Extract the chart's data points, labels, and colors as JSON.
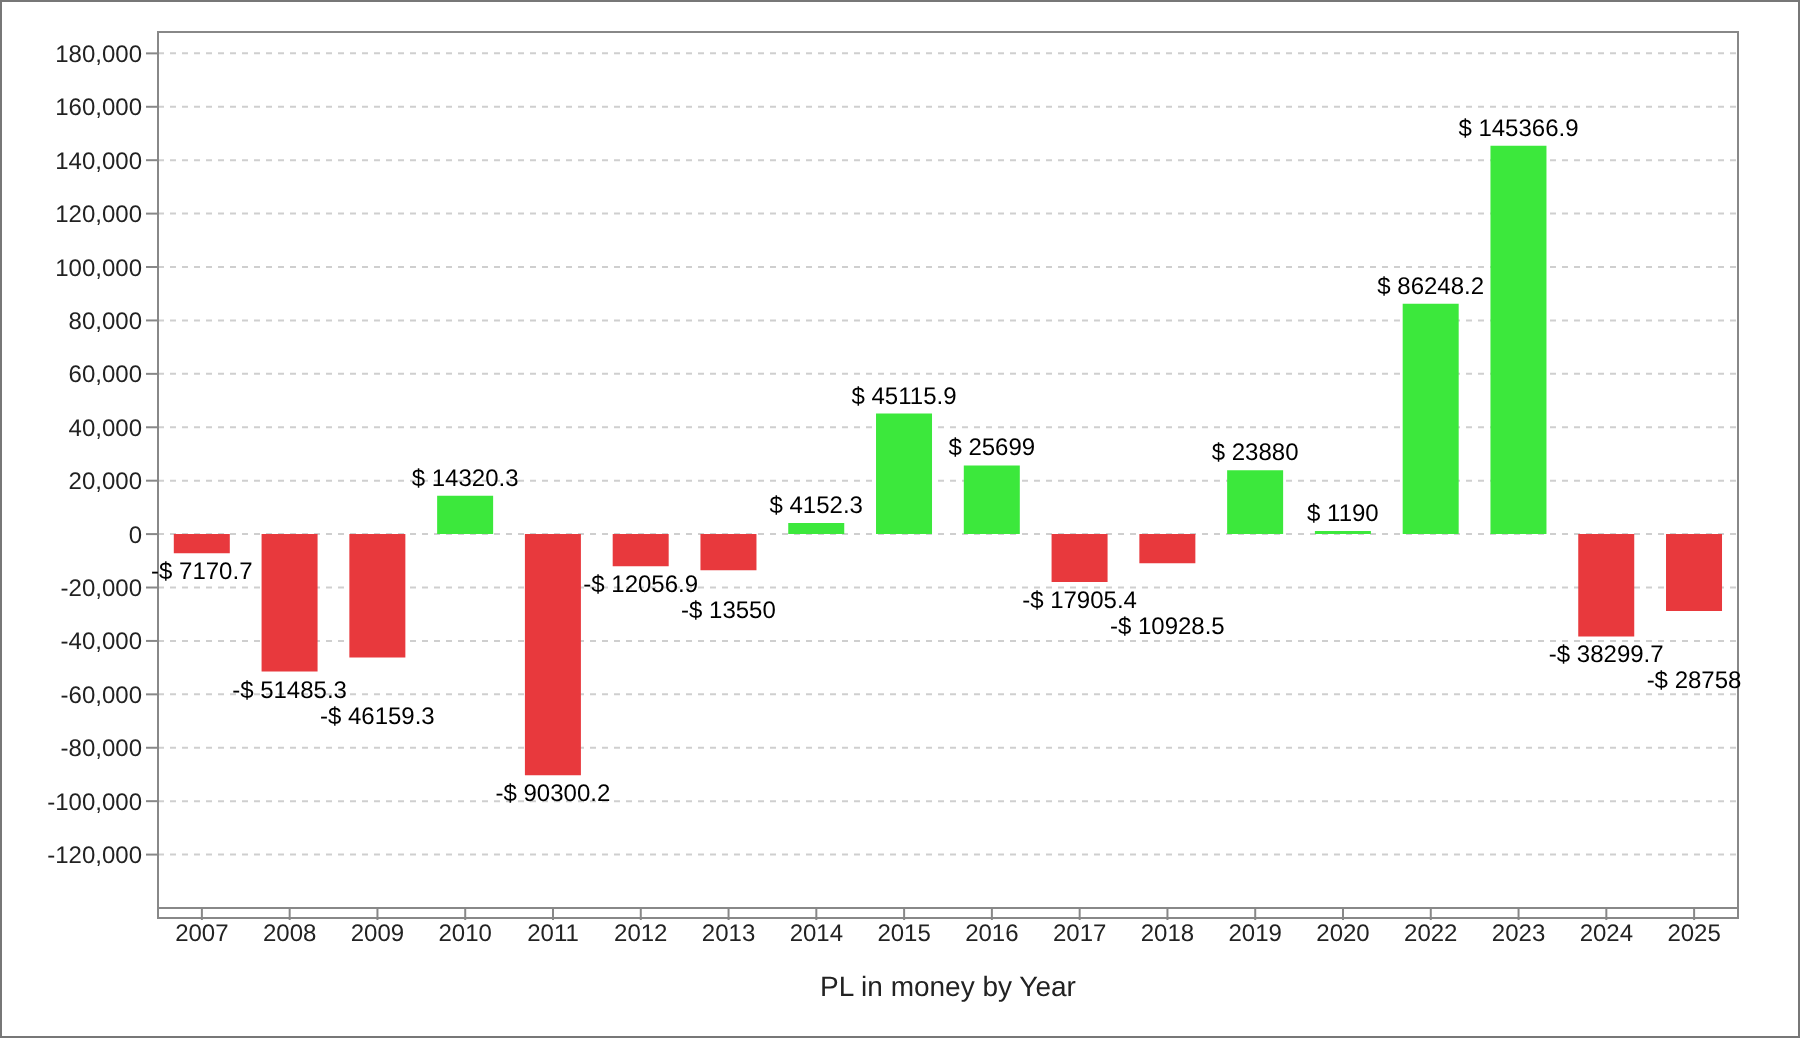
{
  "chart_data": {
    "type": "bar",
    "xlabel": "PL in money by Year",
    "categories": [
      "2007",
      "2008",
      "2009",
      "2010",
      "2011",
      "2012",
      "2013",
      "2014",
      "2015",
      "2016",
      "2017",
      "2018",
      "2019",
      "2020",
      "2022",
      "2023",
      "2024",
      "2025"
    ],
    "values": [
      -7170.7,
      -51485.3,
      -46159.3,
      14320.3,
      -90300.2,
      -12056.9,
      -13550,
      4152.3,
      45115.9,
      25699,
      -17905.4,
      -10928.5,
      23880,
      1190,
      86248.2,
      145366.9,
      -38299.7,
      -28758
    ],
    "value_labels": [
      "-$ 7170.7",
      "-$ 51485.3",
      "-$ 46159.3",
      "$ 14320.3",
      "-$ 90300.2",
      "-$ 12056.9",
      "-$ 13550",
      "$ 4152.3",
      "$ 45115.9",
      "$ 25699",
      "-$ 17905.4",
      "-$ 10928.5",
      "$ 23880",
      "$ 1190",
      "$ 86248.2",
      "$ 145366.9",
      "-$ 38299.7",
      "-$ 28758"
    ],
    "colors": [
      "#e8393d",
      "#e8393d",
      "#e8393d",
      "#3ce83c",
      "#e8393d",
      "#e8393d",
      "#e8393d",
      "#3ce83c",
      "#3ce83c",
      "#3ce83c",
      "#e8393d",
      "#e8393d",
      "#3ce83c",
      "#3ce83c",
      "#3ce83c",
      "#3ce83c",
      "#e8393d",
      "#e8393d"
    ],
    "ylim": [
      -140000,
      188000
    ],
    "yticks": [
      {
        "value": -120000,
        "label": "-120,000"
      },
      {
        "value": -100000,
        "label": "-100,000"
      },
      {
        "value": -80000,
        "label": "-80,000"
      },
      {
        "value": -60000,
        "label": "-60,000"
      },
      {
        "value": -40000,
        "label": "-40,000"
      },
      {
        "value": -20000,
        "label": "-20,000"
      },
      0,
      {
        "value": 20000,
        "label": "20,000"
      },
      {
        "value": 40000,
        "label": "40,000"
      },
      {
        "value": 60000,
        "label": "60,000"
      },
      {
        "value": 80000,
        "label": "80,000"
      },
      {
        "value": 100000,
        "label": "100,000"
      },
      {
        "value": 120000,
        "label": "120,000"
      },
      {
        "value": 140000,
        "label": "140,000"
      },
      {
        "value": 160000,
        "label": "160,000"
      },
      {
        "value": 180000,
        "label": "180,000"
      }
    ],
    "grid": "y",
    "legend": false
  }
}
